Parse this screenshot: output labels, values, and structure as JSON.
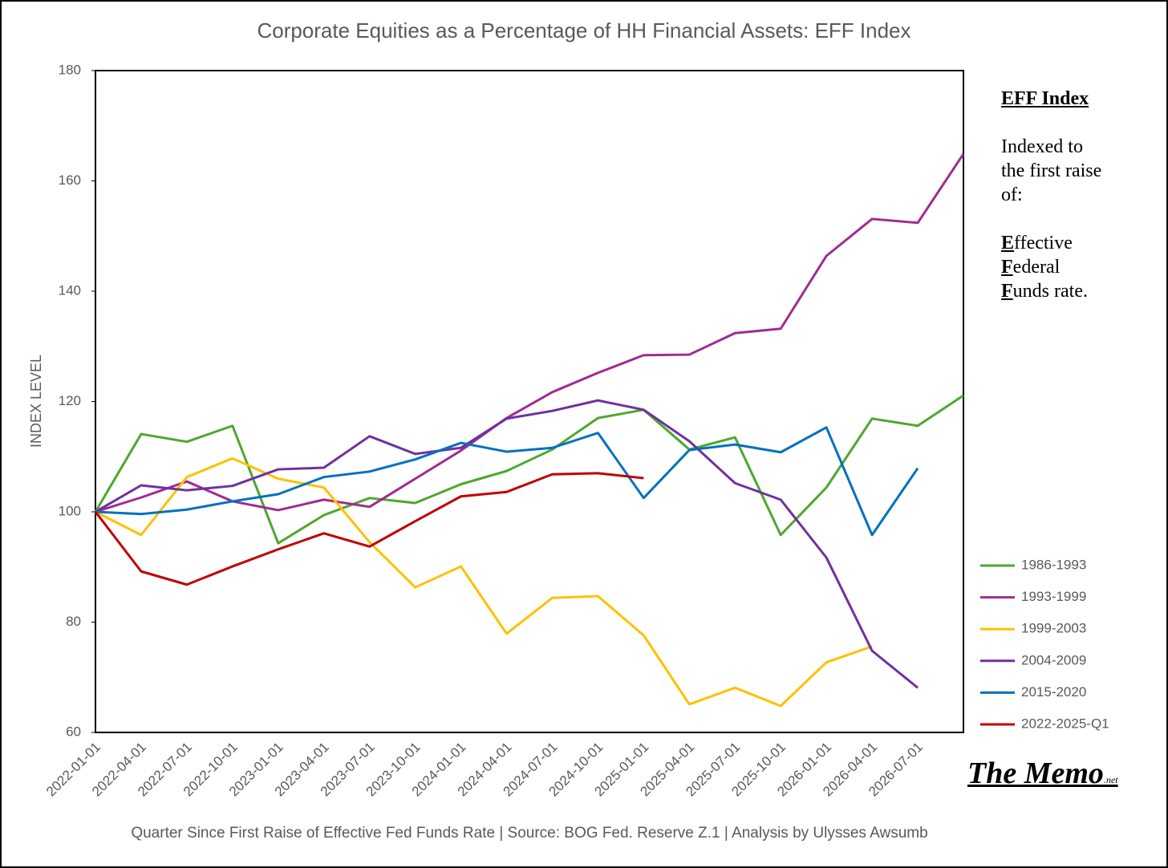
{
  "chart_data": {
    "type": "line",
    "title": "Corporate Equities as a Percentage of HH Financial Assets: EFF Index",
    "xlabel": "Quarter Since First Raise of Effective Fed Funds Rate  |  Source: BOG Fed. Reserve Z.1  |  Analysis by Ulysses Awsumb",
    "ylabel": "INDEX LEVEL",
    "categories": [
      "2022-01-01",
      "2022-04-01",
      "2022-07-01",
      "2022-10-01",
      "2023-01-01",
      "2023-04-01",
      "2023-07-01",
      "2023-10-01",
      "2024-01-01",
      "2024-04-01",
      "2024-07-01",
      "2024-10-01",
      "2025-01-01",
      "2025-04-01",
      "2025-07-01",
      "2025-10-01",
      "2026-01-01",
      "2026-04-01",
      "2026-07-01",
      null
    ],
    "series": [
      {
        "name": "1986-1993",
        "color": "#4ea72e",
        "values": [
          100,
          114.1,
          112.7,
          115.6,
          94.3,
          99.4,
          102.5,
          101.6,
          105,
          107.4,
          111.3,
          117,
          118.5,
          111.3,
          113.5,
          95.8,
          104.4,
          116.9,
          115.6,
          121.1
        ]
      },
      {
        "name": "1993-1999",
        "color": "#a02b93",
        "values": [
          100,
          102.6,
          105.5,
          101.9,
          100.3,
          102.2,
          100.9,
          106,
          111.1,
          117,
          121.7,
          125.2,
          128.4,
          128.5,
          132.4,
          133.2,
          146.4,
          153.1,
          152.4,
          164.9
        ]
      },
      {
        "name": "1999-2003",
        "color": "#ffc000",
        "values": [
          100,
          95.8,
          106.3,
          109.7,
          106,
          104.4,
          94.5,
          86.3,
          90.1,
          77.9,
          84.4,
          84.7,
          77.6,
          65.1,
          68.1,
          64.8,
          72.7,
          75.6,
          null,
          null
        ]
      },
      {
        "name": "2004-2009",
        "color": "#7030a0",
        "values": [
          100,
          104.8,
          103.9,
          104.7,
          107.7,
          108,
          113.7,
          110.5,
          111.6,
          116.9,
          118.3,
          120.2,
          118.5,
          112.8,
          105.2,
          102.2,
          91.7,
          74.8,
          68.1,
          null
        ]
      },
      {
        "name": "2015-2020",
        "color": "#0070c0",
        "values": [
          100,
          99.6,
          100.4,
          101.9,
          103.2,
          106.3,
          107.3,
          109.5,
          112.5,
          110.9,
          111.6,
          114.3,
          102.5,
          111.2,
          112.2,
          110.8,
          115.3,
          95.8,
          107.9,
          null
        ]
      },
      {
        "name": "2022-2025-Q1",
        "color": "#c00000",
        "values": [
          100,
          89.2,
          86.8,
          90.1,
          93.2,
          96.1,
          93.7,
          98.3,
          102.8,
          103.6,
          106.8,
          107,
          106.1,
          null,
          null,
          null,
          null,
          null,
          null,
          null
        ]
      }
    ],
    "ylim": [
      60,
      180
    ],
    "yticks": [
      60,
      80,
      100,
      120,
      140,
      160,
      180
    ],
    "grid": false,
    "legend": "right",
    "annotation": {
      "heading": "EFF Index",
      "lines": [
        "Indexed to",
        "the first raise",
        "of:",
        "Effective",
        "Federal",
        "Funds rate."
      ]
    },
    "logo": {
      "text": "The Memo",
      "suffix": ".net"
    }
  }
}
